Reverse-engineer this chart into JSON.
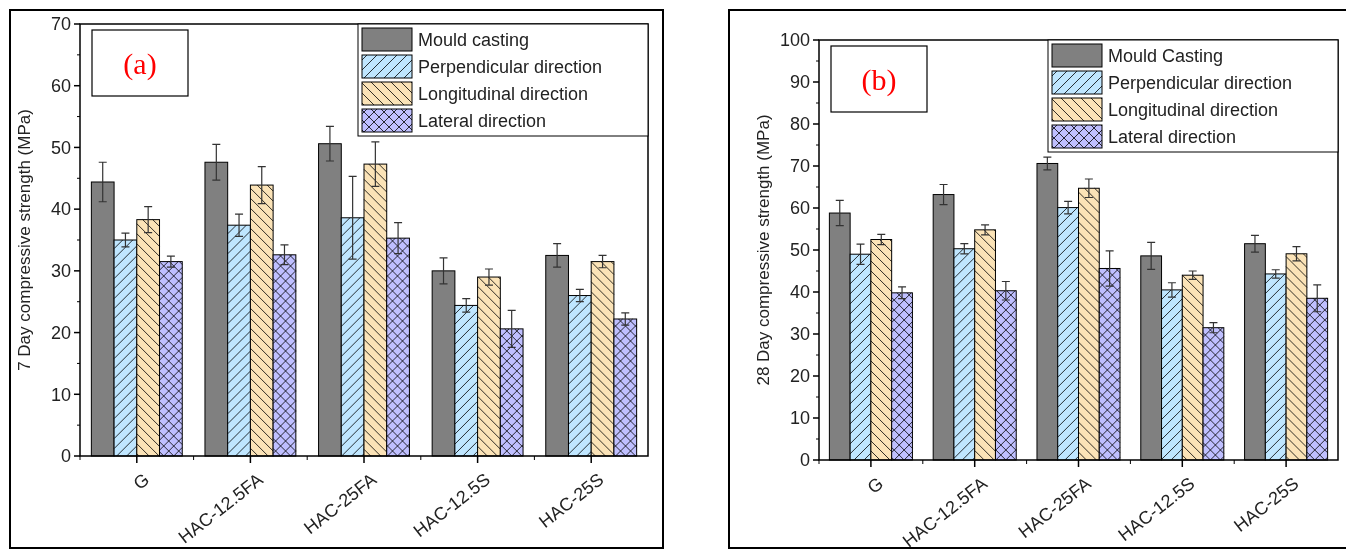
{
  "chart_data": [
    {
      "type": "bar",
      "ylabel": "7 Day compressive strength (MPa)",
      "categories": [
        "G",
        "HAC-12.5FA",
        "HAC-25FA",
        "HAC-12.5S",
        "HAC-25S"
      ],
      "series": [
        {
          "name": "Mould casting",
          "color": "#808080",
          "values": [
            44.4,
            47.6,
            50.6,
            30,
            32.5
          ],
          "errors": [
            3.2,
            2.9,
            2.8,
            2.1,
            1.9
          ]
        },
        {
          "name": "Perpendicular direction",
          "color": "#bfe6ff",
          "values": [
            35,
            37.4,
            38.6,
            24.4,
            26
          ],
          "errors": [
            1.1,
            1.8,
            6.7,
            1.1,
            1
          ]
        },
        {
          "name": "Longitudinal direction",
          "color": "#fbe3b7",
          "values": [
            38.3,
            43.9,
            47.3,
            29,
            31.5
          ],
          "errors": [
            2.1,
            3,
            3.6,
            1.3,
            1
          ]
        },
        {
          "name": "Lateral direction",
          "color": "#bfbfff",
          "values": [
            31.5,
            32.6,
            35.3,
            20.6,
            22.2
          ],
          "errors": [
            0.9,
            1.6,
            2.5,
            3,
            1
          ]
        }
      ],
      "ylim": [
        0,
        70
      ],
      "yticks": [
        0,
        10,
        20,
        30,
        40,
        50,
        60,
        70
      ],
      "legend": "top right",
      "annotations": [
        "(a)"
      ]
    },
    {
      "type": "bar",
      "ylabel": "28 Day compressive strength (MPa)",
      "categories": [
        "G",
        "HAC-12.5FA",
        "HAC-25FA",
        "HAC-12.5S",
        "HAC-25S"
      ],
      "series": [
        {
          "name": "Mould Casting",
          "color": "#808080",
          "values": [
            58.8,
            63.2,
            70.6,
            48.6,
            51.5
          ],
          "errors": [
            3,
            2.4,
            1.5,
            3.2,
            2
          ]
        },
        {
          "name": "Perpendicular direction",
          "color": "#bfe6ff",
          "values": [
            49,
            50.3,
            60.1,
            40.5,
            44.3
          ],
          "errors": [
            2.4,
            1.2,
            1.5,
            1.7,
            1
          ]
        },
        {
          "name": "Longitudinal direction",
          "color": "#fbe3b7",
          "values": [
            52.5,
            54.8,
            64.7,
            44,
            49.1
          ],
          "errors": [
            1.2,
            1.2,
            2.2,
            1,
            1.7
          ]
        },
        {
          "name": "Lateral direction",
          "color": "#bfbfff",
          "values": [
            39.8,
            40.3,
            45.6,
            31.5,
            38.5
          ],
          "errors": [
            1.4,
            2.2,
            4.2,
            1.2,
            3.2
          ]
        }
      ],
      "ylim": [
        0,
        100
      ],
      "yticks": [
        0,
        10,
        20,
        30,
        40,
        50,
        60,
        70,
        80,
        90,
        100
      ],
      "legend": "top right",
      "annotations": [
        "(b)"
      ]
    }
  ]
}
